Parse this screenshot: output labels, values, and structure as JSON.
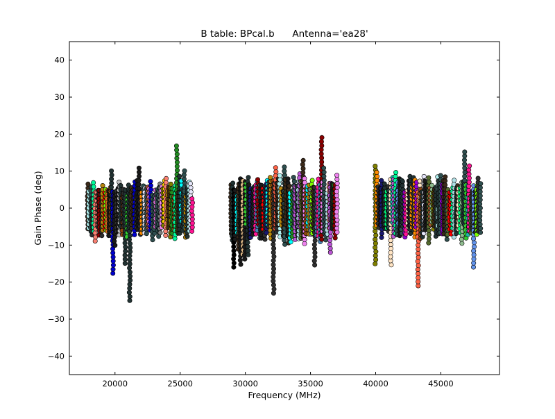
{
  "chart_data": {
    "type": "scatter",
    "title": "B table: BPcal.b      Antenna='ea28'",
    "xlabel": "Frequency (MHz)",
    "ylabel": "Gain Phase (deg)",
    "xlim": [
      16500,
      49500
    ],
    "ylim": [
      -45,
      45
    ],
    "xticks": [
      20000,
      25000,
      30000,
      35000,
      40000,
      45000
    ],
    "yticks": [
      -40,
      -30,
      -20,
      -10,
      0,
      10,
      20,
      30,
      40
    ],
    "grid": false,
    "legend": "none",
    "marker_edge_color": "#000000",
    "windows": [
      {
        "freq_range": [
          17900,
          25900
        ],
        "phase_min": -25,
        "phase_max": 17,
        "typical_range": [
          -7,
          7
        ]
      },
      {
        "freq_range": [
          28900,
          37000
        ],
        "phase_min": -23,
        "phase_max": 20,
        "typical_range": [
          -8,
          8
        ]
      },
      {
        "freq_range": [
          40000,
          48000
        ],
        "phase_min": -21,
        "phase_max": 16,
        "typical_range": [
          -7,
          8
        ]
      }
    ],
    "palette": [
      "#00ff7f",
      "#ff0000",
      "#ff8c00",
      "#7fff00",
      "#0000cd",
      "#00ffff",
      "#ffe4c4",
      "#deb887",
      "#a0522d",
      "#ffa07a",
      "#ff1493",
      "#9400d3",
      "#20b2aa",
      "#8b0000",
      "#b8860b",
      "#ffd700",
      "#8fbc8f",
      "#e6e6fa",
      "#f5f5dc",
      "#c0c0c0",
      "#808080",
      "#000000",
      "#556b2f",
      "#2f4f4f",
      "#ee82ee",
      "#6495ed",
      "#00fa9a",
      "#ba55d3",
      "#ff6347",
      "#afeeee",
      "#8b4513",
      "#d2691e",
      "#4682b4",
      "#32cd32",
      "#fa8072",
      "#191970",
      "#808000",
      "#228b22",
      "#da70d6",
      "#b0e0e6"
    ]
  }
}
